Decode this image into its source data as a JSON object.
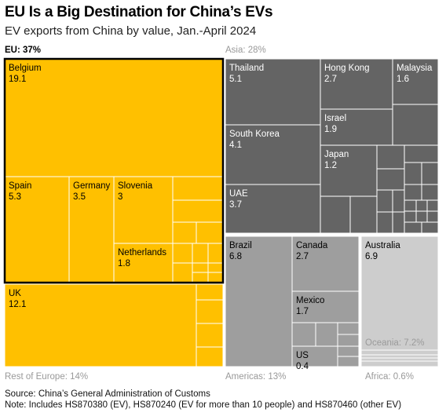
{
  "header": {
    "title": "EU Is a Big Destination for China’s EVs",
    "subtitle": "EV exports from China by value, Jan.-April 2024"
  },
  "chart_data": {
    "type": "treemap",
    "title": "EU Is a Big Destination for China’s EVs",
    "subtitle": "EV exports from China by value, Jan.-April 2024",
    "groups": [
      {
        "name": "EU",
        "share_label": "EU: 37%",
        "color": "#FFC000",
        "items": [
          {
            "name": "Belgium",
            "value": 19.1,
            "label": "19.1"
          },
          {
            "name": "Spain",
            "value": 5.3,
            "label": "5.3"
          },
          {
            "name": "Germany",
            "value": 3.5,
            "label": "3.5"
          },
          {
            "name": "Slovenia",
            "value": 3,
            "label": "3"
          },
          {
            "name": "Netherlands",
            "value": 1.8,
            "label": "1.8"
          }
        ]
      },
      {
        "name": "Rest of Europe",
        "share_label": "Rest of Europe: 14%",
        "color": "#FFC000",
        "items": [
          {
            "name": "UK",
            "value": 12.1,
            "label": "12.1"
          }
        ]
      },
      {
        "name": "Asia",
        "share_label": "Asia: 28%",
        "color": "#646464",
        "items": [
          {
            "name": "Thailand",
            "value": 5.1,
            "label": "5.1"
          },
          {
            "name": "Hong Kong",
            "value": 2.7,
            "label": "2.7"
          },
          {
            "name": "Malaysia",
            "value": 1.6,
            "label": "1.6"
          },
          {
            "name": "Israel",
            "value": 1.9,
            "label": "1.9"
          },
          {
            "name": "South Korea",
            "value": 4.1,
            "label": "4.1"
          },
          {
            "name": "Japan",
            "value": 1.2,
            "label": "1.2"
          },
          {
            "name": "UAE",
            "value": 3.7,
            "label": "3.7"
          }
        ]
      },
      {
        "name": "Americas",
        "share_label": "Americas: 13%",
        "color": "#9E9E9E",
        "items": [
          {
            "name": "Brazil",
            "value": 6.8,
            "label": "6.8"
          },
          {
            "name": "Canada",
            "value": 2.7,
            "label": "2.7"
          },
          {
            "name": "Mexico",
            "value": 1.7,
            "label": "1.7"
          },
          {
            "name": "US",
            "value": 0.4,
            "label": "0.4"
          }
        ]
      },
      {
        "name": "Oceania",
        "share_label": "Oceania: 7.2%",
        "color": "#CDCDCD",
        "items": [
          {
            "name": "Australia",
            "value": 6.9,
            "label": "6.9"
          }
        ]
      },
      {
        "name": "Africa",
        "share_label": "Africa: 0.6%",
        "color": "#CDCDCD",
        "items": []
      }
    ]
  },
  "footer": {
    "source": "Source: China’s General Administration of Customs",
    "note": "Note: Includes HS870380 (EV), HS870240 (EV for more than 10 people) and HS870460 (other EV)"
  }
}
